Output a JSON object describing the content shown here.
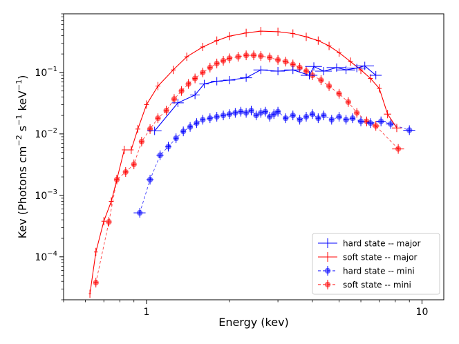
{
  "chart_data": {
    "type": "scatter",
    "title": "",
    "xlabel": "Energy (kev)",
    "ylabel_parts": [
      "Kev (Photons cm",
      "−2",
      " s",
      "−1",
      " keV",
      "−1",
      ")"
    ],
    "xscale": "log",
    "yscale": "log",
    "xlim": [
      0.5,
      12
    ],
    "ylim": [
      2e-05,
      0.9
    ],
    "x_ticks": [
      {
        "value": 1,
        "label": "1"
      },
      {
        "value": 10,
        "label": "10"
      }
    ],
    "y_ticks": [
      {
        "value": 0.0001,
        "mant": "10",
        "exp": "−4"
      },
      {
        "value": 0.001,
        "mant": "10",
        "exp": "−3"
      },
      {
        "value": 0.01,
        "mant": "10",
        "exp": "−2"
      },
      {
        "value": 0.1,
        "mant": "10",
        "exp": "−1"
      }
    ],
    "legend_location": "lower right",
    "series": [
      {
        "name": "hard state -- major",
        "color": "#0000ff",
        "style": "solid",
        "marker": "errorbar",
        "points": [
          [
            1.07,
            0.0112,
            0.06
          ],
          [
            1.3,
            0.032,
            0.05
          ],
          [
            1.5,
            0.043,
            0.04
          ],
          [
            1.62,
            0.065,
            0.04
          ],
          [
            1.8,
            0.072,
            0.05
          ],
          [
            2.0,
            0.075,
            0.05
          ],
          [
            2.3,
            0.082,
            0.05
          ],
          [
            2.6,
            0.11,
            0.06
          ],
          [
            3.0,
            0.105,
            0.06
          ],
          [
            3.4,
            0.11,
            0.07
          ],
          [
            3.9,
            0.09,
            0.07
          ],
          [
            4.05,
            0.125,
            0.07
          ],
          [
            4.4,
            0.105,
            0.07
          ],
          [
            4.9,
            0.12,
            0.08
          ],
          [
            5.3,
            0.11,
            0.08
          ],
          [
            5.8,
            0.118,
            0.08
          ],
          [
            6.2,
            0.128,
            0.08
          ],
          [
            6.8,
            0.09,
            0.05
          ]
        ]
      },
      {
        "name": "soft state -- major",
        "color": "#ff0000",
        "style": "solid",
        "marker": "errorbar",
        "points": [
          [
            0.623,
            2.5e-05,
            0.01
          ],
          [
            0.655,
            0.00012,
            0.015
          ],
          [
            0.7,
            0.00038,
            0.02
          ],
          [
            0.745,
            0.0008,
            0.02
          ],
          [
            0.78,
            0.0018,
            0.02
          ],
          [
            0.83,
            0.0055,
            0.02
          ],
          [
            0.88,
            0.0055,
            0.02
          ],
          [
            0.93,
            0.012,
            0.02
          ],
          [
            1.0,
            0.03,
            0.02
          ],
          [
            1.1,
            0.06,
            0.02
          ],
          [
            1.25,
            0.11,
            0.02
          ],
          [
            1.4,
            0.18,
            0.02
          ],
          [
            1.6,
            0.26,
            0.02
          ],
          [
            1.8,
            0.33,
            0.02
          ],
          [
            2.0,
            0.39,
            0.02
          ],
          [
            2.3,
            0.44,
            0.02
          ],
          [
            2.6,
            0.47,
            0.02
          ],
          [
            3.0,
            0.46,
            0.02
          ],
          [
            3.4,
            0.43,
            0.02
          ],
          [
            3.8,
            0.38,
            0.02
          ],
          [
            4.2,
            0.33,
            0.02
          ],
          [
            4.6,
            0.27,
            0.02
          ],
          [
            5.0,
            0.21,
            0.02
          ],
          [
            5.5,
            0.15,
            0.02
          ],
          [
            6.0,
            0.11,
            0.02
          ],
          [
            6.5,
            0.08,
            0.02
          ],
          [
            7.0,
            0.055,
            0.02
          ],
          [
            7.5,
            0.021,
            0.03
          ],
          [
            8.1,
            0.0125,
            0.04
          ]
        ]
      },
      {
        "name": "hard state -- mini",
        "color": "#0000ff",
        "style": "dashed",
        "marker": "circle",
        "points": [
          [
            0.945,
            0.00052,
            0.05
          ],
          [
            1.03,
            0.0018,
            0.03
          ],
          [
            1.12,
            0.0045,
            0.03
          ],
          [
            1.2,
            0.0062,
            0.025
          ],
          [
            1.28,
            0.0085,
            0.02
          ],
          [
            1.36,
            0.011,
            0.02
          ],
          [
            1.44,
            0.013,
            0.02
          ],
          [
            1.52,
            0.015,
            0.02
          ],
          [
            1.6,
            0.017,
            0.02
          ],
          [
            1.7,
            0.018,
            0.02
          ],
          [
            1.8,
            0.019,
            0.02
          ],
          [
            1.9,
            0.02,
            0.02
          ],
          [
            2.0,
            0.021,
            0.02
          ],
          [
            2.1,
            0.022,
            0.02
          ],
          [
            2.2,
            0.023,
            0.02
          ],
          [
            2.3,
            0.022,
            0.02
          ],
          [
            2.4,
            0.024,
            0.02
          ],
          [
            2.5,
            0.02,
            0.02
          ],
          [
            2.6,
            0.022,
            0.02
          ],
          [
            2.7,
            0.023,
            0.02
          ],
          [
            2.8,
            0.019,
            0.02
          ],
          [
            2.9,
            0.021,
            0.02
          ],
          [
            3.0,
            0.023,
            0.02
          ],
          [
            3.2,
            0.018,
            0.02
          ],
          [
            3.4,
            0.02,
            0.02
          ],
          [
            3.6,
            0.017,
            0.02
          ],
          [
            3.8,
            0.019,
            0.02
          ],
          [
            4.0,
            0.021,
            0.02
          ],
          [
            4.2,
            0.018,
            0.02
          ],
          [
            4.4,
            0.02,
            0.02
          ],
          [
            4.7,
            0.017,
            0.02
          ],
          [
            5.0,
            0.019,
            0.02
          ],
          [
            5.3,
            0.017,
            0.02
          ],
          [
            5.6,
            0.018,
            0.02
          ],
          [
            6.0,
            0.016,
            0.025
          ],
          [
            6.5,
            0.015,
            0.03
          ],
          [
            7.1,
            0.016,
            0.04
          ],
          [
            7.7,
            0.0145,
            0.04
          ],
          [
            9.0,
            0.0115,
            0.05
          ]
        ]
      },
      {
        "name": "soft state -- mini",
        "color": "#ff0000",
        "style": "dashed",
        "marker": "circle",
        "points": [
          [
            0.655,
            3.8e-05,
            0.02
          ],
          [
            0.73,
            0.00037,
            0.02
          ],
          [
            0.78,
            0.0018,
            0.02
          ],
          [
            0.84,
            0.0024,
            0.02
          ],
          [
            0.9,
            0.0032,
            0.02
          ],
          [
            0.96,
            0.0075,
            0.02
          ],
          [
            1.03,
            0.012,
            0.02
          ],
          [
            1.1,
            0.018,
            0.02
          ],
          [
            1.18,
            0.024,
            0.02
          ],
          [
            1.26,
            0.037,
            0.02
          ],
          [
            1.34,
            0.05,
            0.02
          ],
          [
            1.42,
            0.065,
            0.02
          ],
          [
            1.5,
            0.08,
            0.02
          ],
          [
            1.6,
            0.1,
            0.02
          ],
          [
            1.7,
            0.12,
            0.02
          ],
          [
            1.8,
            0.14,
            0.02
          ],
          [
            1.9,
            0.155,
            0.02
          ],
          [
            2.0,
            0.17,
            0.02
          ],
          [
            2.15,
            0.18,
            0.02
          ],
          [
            2.3,
            0.19,
            0.02
          ],
          [
            2.45,
            0.19,
            0.02
          ],
          [
            2.6,
            0.185,
            0.02
          ],
          [
            2.8,
            0.175,
            0.02
          ],
          [
            3.0,
            0.16,
            0.02
          ],
          [
            3.2,
            0.15,
            0.02
          ],
          [
            3.4,
            0.135,
            0.02
          ],
          [
            3.6,
            0.12,
            0.02
          ],
          [
            3.8,
            0.105,
            0.02
          ],
          [
            4.0,
            0.09,
            0.02
          ],
          [
            4.3,
            0.075,
            0.02
          ],
          [
            4.6,
            0.06,
            0.02
          ],
          [
            5.0,
            0.045,
            0.02
          ],
          [
            5.4,
            0.033,
            0.02
          ],
          [
            5.8,
            0.022,
            0.02
          ],
          [
            6.3,
            0.016,
            0.02
          ],
          [
            6.8,
            0.0135,
            0.03
          ],
          [
            8.2,
            0.0057,
            0.05
          ]
        ]
      }
    ]
  }
}
